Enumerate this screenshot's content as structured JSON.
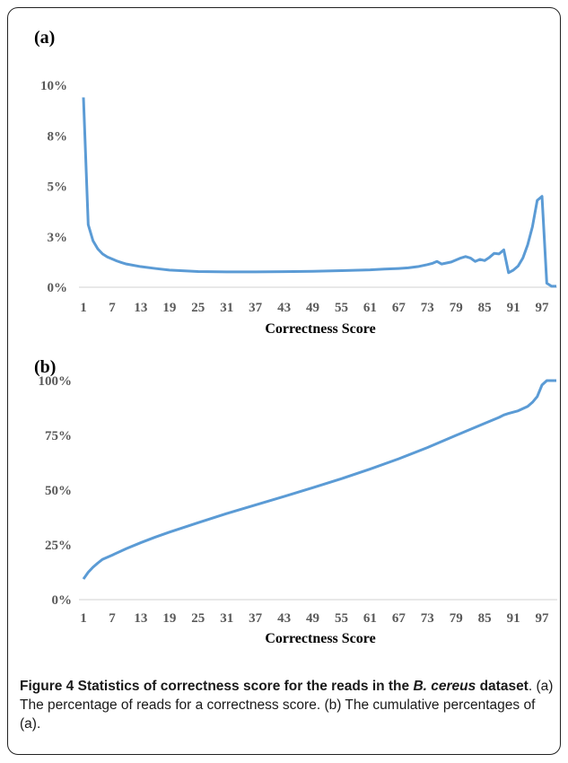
{
  "chart_data": [
    {
      "type": "line",
      "panel_label": "(a)",
      "title": "",
      "xlabel": "Correctness Score",
      "ylabel": "",
      "x_tick_labels": [
        "1",
        "7",
        "13",
        "19",
        "25",
        "31",
        "37",
        "43",
        "49",
        "55",
        "61",
        "67",
        "73",
        "79",
        "85",
        "91",
        "97"
      ],
      "y_tick_labels": [
        "0%",
        "3%",
        "5%",
        "8%",
        "10%"
      ],
      "ylim": [
        0,
        10
      ],
      "color": "#5b9bd5",
      "x": [
        1,
        2,
        3,
        4,
        5,
        6,
        7,
        8,
        9,
        10,
        13,
        16,
        19,
        25,
        31,
        37,
        43,
        49,
        55,
        61,
        64,
        67,
        69,
        71,
        73,
        74,
        75,
        76,
        77,
        78,
        79,
        80,
        81,
        82,
        83,
        84,
        85,
        86,
        87,
        88,
        89,
        90,
        91,
        92,
        93,
        94,
        95,
        96,
        97,
        98,
        99,
        100
      ],
      "values": [
        9.4,
        3.1,
        2.3,
        1.9,
        1.65,
        1.5,
        1.4,
        1.3,
        1.22,
        1.15,
        1.02,
        0.93,
        0.85,
        0.78,
        0.76,
        0.76,
        0.77,
        0.79,
        0.82,
        0.86,
        0.9,
        0.93,
        0.96,
        1.02,
        1.12,
        1.18,
        1.28,
        1.15,
        1.2,
        1.25,
        1.35,
        1.45,
        1.52,
        1.45,
        1.28,
        1.38,
        1.32,
        1.48,
        1.68,
        1.65,
        1.85,
        0.72,
        0.85,
        1.05,
        1.45,
        2.1,
        3.0,
        4.3,
        4.5,
        0.2,
        0.05,
        0.05
      ]
    },
    {
      "type": "line",
      "panel_label": "(b)",
      "title": "",
      "xlabel": "Correctness Score",
      "ylabel": "",
      "x_tick_labels": [
        "1",
        "7",
        "13",
        "19",
        "25",
        "31",
        "37",
        "43",
        "49",
        "55",
        "61",
        "67",
        "73",
        "79",
        "85",
        "91",
        "97"
      ],
      "y_tick_labels": [
        "0%",
        "25%",
        "50%",
        "75%",
        "100%"
      ],
      "ylim": [
        0,
        100
      ],
      "color": "#5b9bd5",
      "x": [
        1,
        2,
        3,
        4,
        5,
        7,
        10,
        13,
        16,
        19,
        25,
        31,
        37,
        43,
        49,
        55,
        61,
        67,
        73,
        79,
        85,
        88,
        89,
        90,
        92,
        94,
        95,
        96,
        97,
        98,
        99,
        100
      ],
      "values": [
        9.4,
        12.5,
        14.8,
        16.7,
        18.4,
        20.3,
        23.3,
        26.0,
        28.5,
        30.8,
        35.1,
        39.3,
        43.2,
        47.1,
        51.1,
        55.2,
        59.6,
        64.3,
        69.4,
        75.0,
        80.5,
        83.2,
        84.3,
        85.0,
        86.2,
        88.2,
        90.1,
        92.7,
        98.0,
        100,
        100,
        100
      ]
    }
  ],
  "caption": {
    "figure_number": "Figure 4",
    "title_part1": "Statistics of correctness score for the reads in the ",
    "species": "B. cereus",
    "title_part2": " dataset",
    "description": ". (a) The percentage of reads for a correctness score. (b) The cumulative percentages of (a)."
  }
}
